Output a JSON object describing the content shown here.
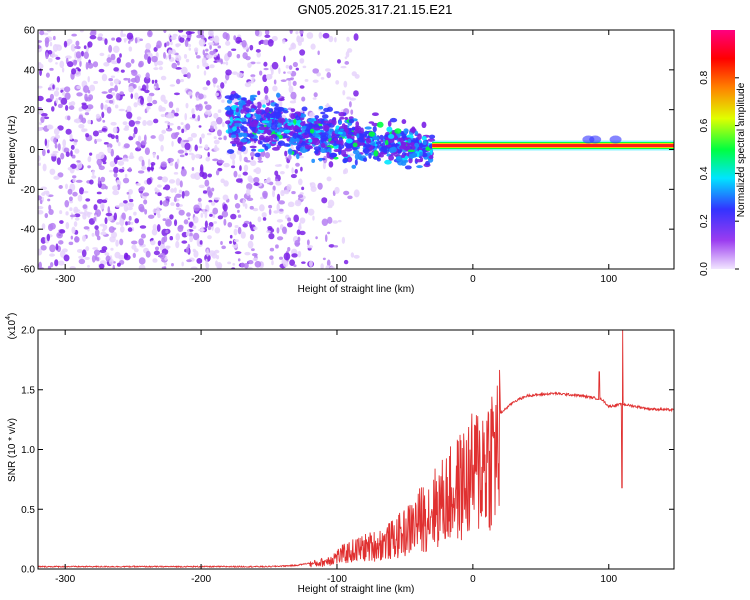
{
  "title": "GN05.2025.317.21.15.E21",
  "colors": {
    "snr_line": "#e03030",
    "colorbar": [
      "#f0e0ff",
      "#8a2be2",
      "#3333ff",
      "#00e5ff",
      "#00ff40",
      "#e0ff00",
      "#ff8000",
      "#ff0000",
      "#ff0080"
    ]
  },
  "chart_data": [
    {
      "type": "heatmap",
      "title": "GN05.2025.317.21.15.E21",
      "xlabel": "Height of straight line (km)",
      "ylabel": "Frequency (Hz)",
      "xlim": [
        -320,
        148
      ],
      "ylim": [
        -60,
        60
      ],
      "xticks": [
        -300,
        -200,
        -100,
        0,
        100
      ],
      "yticks": [
        -60,
        -40,
        -20,
        0,
        20,
        40,
        60
      ],
      "colorbar": {
        "label": "Normalized spectral amplitude",
        "range": [
          0,
          1
        ],
        "ticks": [
          0.0,
          0.2,
          0.4,
          0.6,
          0.8
        ]
      },
      "features": [
        {
          "name": "noise_region",
          "x_range": [
            -320,
            -125
          ],
          "freq_range": [
            -60,
            60
          ],
          "amplitude": "low (0.0-0.2)"
        },
        {
          "name": "transition_band",
          "x_range": [
            -180,
            -30
          ],
          "freq_center": [
            14,
            0
          ],
          "amplitude": "0.2-0.5"
        },
        {
          "name": "stable_tone",
          "x_range": [
            -30,
            148
          ],
          "freq_center": 2,
          "amplitude": "0.8-1.0"
        }
      ]
    },
    {
      "type": "line",
      "xlabel": "Height of straight line (km)",
      "ylabel": "SNR (10 * v/v)",
      "yscale_label": "(x10",
      "yscale_exponent": "4",
      "yscale_suffix": ")",
      "xlim": [
        -320,
        148
      ],
      "ylim": [
        0,
        2.0
      ],
      "xticks": [
        -300,
        -200,
        -100,
        0,
        100
      ],
      "yticks": [
        0.0,
        0.5,
        1.0,
        1.5,
        2.0
      ],
      "ytick_labels": [
        "0.0",
        "0.5",
        "1.0",
        "1.5",
        "2.0"
      ],
      "series": [
        {
          "name": "SNR",
          "x": [
            -320,
            -250,
            -200,
            -150,
            -130,
            -110,
            -100,
            -90,
            -80,
            -70,
            -60,
            -50,
            -40,
            -30,
            -20,
            -10,
            0,
            10,
            20,
            30,
            40,
            60,
            80,
            95,
            100,
            110,
            120,
            130,
            148
          ],
          "y": [
            0.02,
            0.02,
            0.02,
            0.02,
            0.03,
            0.07,
            0.13,
            0.18,
            0.22,
            0.25,
            0.3,
            0.38,
            0.5,
            0.62,
            0.72,
            0.85,
            0.98,
            1.15,
            1.3,
            1.4,
            1.45,
            1.47,
            1.45,
            1.42,
            1.36,
            1.38,
            1.36,
            1.34,
            1.33
          ]
        }
      ]
    }
  ]
}
